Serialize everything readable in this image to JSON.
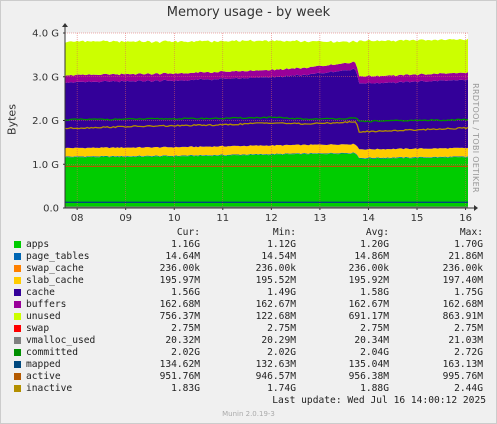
{
  "title": "Memory usage - by week",
  "side_label": "RRDTOOL / TOBI OETIKER",
  "footer": "Munin 2.0.19-3",
  "last_update": "Last update:  Wed Jul 16 14:00:12 2025",
  "legend_headers": [
    "Cur:",
    "Min:",
    "Avg:",
    "Max:"
  ],
  "legend": [
    {
      "name": "apps",
      "color": "#00cc00",
      "cur": "1.16G",
      "min": "1.12G",
      "avg": "1.20G",
      "max": "1.70G"
    },
    {
      "name": "page_tables",
      "color": "#0066b3",
      "cur": "14.64M",
      "min": "14.54M",
      "avg": "14.86M",
      "max": "21.86M"
    },
    {
      "name": "swap_cache",
      "color": "#ff8000",
      "cur": "236.00k",
      "min": "236.00k",
      "avg": "236.00k",
      "max": "236.00k"
    },
    {
      "name": "slab_cache",
      "color": "#ffcc00",
      "cur": "195.97M",
      "min": "195.52M",
      "avg": "195.92M",
      "max": "197.40M"
    },
    {
      "name": "cache",
      "color": "#330099",
      "cur": "1.56G",
      "min": "1.49G",
      "avg": "1.58G",
      "max": "1.75G"
    },
    {
      "name": "buffers",
      "color": "#990099",
      "cur": "162.68M",
      "min": "162.67M",
      "avg": "162.67M",
      "max": "162.68M"
    },
    {
      "name": "unused",
      "color": "#ccff00",
      "cur": "756.37M",
      "min": "122.68M",
      "avg": "691.17M",
      "max": "863.91M"
    },
    {
      "name": "swap",
      "color": "#ff0000",
      "cur": "2.75M",
      "min": "2.75M",
      "avg": "2.75M",
      "max": "2.75M"
    },
    {
      "name": "vmalloc_used",
      "color": "#808080",
      "cur": "20.32M",
      "min": "20.29M",
      "avg": "20.34M",
      "max": "21.03M"
    },
    {
      "name": "committed",
      "color": "#008f00",
      "cur": "2.02G",
      "min": "2.02G",
      "avg": "2.04G",
      "max": "2.72G"
    },
    {
      "name": "mapped",
      "color": "#00487d",
      "cur": "134.62M",
      "min": "132.63M",
      "avg": "135.04M",
      "max": "163.13M"
    },
    {
      "name": "active",
      "color": "#b35a00",
      "cur": "951.76M",
      "min": "946.57M",
      "avg": "956.38M",
      "max": "995.76M"
    },
    {
      "name": "inactive",
      "color": "#b38f00",
      "cur": "1.83G",
      "min": "1.74G",
      "avg": "1.88G",
      "max": "2.44G"
    }
  ],
  "chart_data": {
    "type": "area",
    "title": "Memory usage - by week",
    "ylabel": "Bytes",
    "xlabel": "",
    "x_ticks": [
      "08",
      "09",
      "10",
      "11",
      "12",
      "13",
      "14",
      "15",
      "16"
    ],
    "y_ticks": [
      "0.0",
      "1.0 G",
      "2.0 G",
      "3.0 G",
      "4.0 G"
    ],
    "y_tick_values": [
      0,
      1.0,
      2.0,
      3.0,
      4.0
    ],
    "ylim": [
      0,
      4.0
    ],
    "y_unit": "GB",
    "xlim_days": [
      7.75,
      16.05
    ],
    "grid": true,
    "stacked_series": [
      {
        "name": "apps",
        "color": "#00cc00",
        "x": [
          7.75,
          10.0,
          12.0,
          13.75,
          13.8,
          16.05
        ],
        "y": [
          1.16,
          1.18,
          1.22,
          1.25,
          1.13,
          1.16
        ]
      },
      {
        "name": "page_tables",
        "color": "#0066b3",
        "x": [
          7.75,
          16.05
        ],
        "y": [
          0.015,
          0.015
        ]
      },
      {
        "name": "swap_cache",
        "color": "#ff8000",
        "x": [
          7.75,
          16.05
        ],
        "y": [
          0.0,
          0.0
        ]
      },
      {
        "name": "slab_cache",
        "color": "#ffcc00",
        "x": [
          7.75,
          16.05
        ],
        "y": [
          0.196,
          0.196
        ]
      },
      {
        "name": "cache",
        "color": "#330099",
        "x": [
          7.75,
          10.0,
          12.0,
          12.7,
          13.75,
          13.8,
          16.05
        ],
        "y": [
          1.5,
          1.52,
          1.56,
          1.6,
          1.72,
          1.5,
          1.56
        ]
      },
      {
        "name": "buffers",
        "color": "#990099",
        "x": [
          7.75,
          16.05
        ],
        "y": [
          0.163,
          0.163
        ]
      },
      {
        "name": "unused",
        "color": "#ccff00",
        "x": [
          7.75,
          10.0,
          12.0,
          12.7,
          13.75,
          13.8,
          16.05
        ],
        "y": [
          0.77,
          0.73,
          0.67,
          0.6,
          0.46,
          0.81,
          0.76
        ]
      }
    ],
    "line_series": [
      {
        "name": "committed",
        "color": "#008f00",
        "x": [
          7.75,
          9.0,
          11.0,
          12.0,
          12.7,
          13.75,
          13.8,
          16.05
        ],
        "y": [
          2.02,
          2.03,
          2.05,
          2.07,
          2.03,
          2.05,
          1.98,
          2.02
        ]
      },
      {
        "name": "inactive",
        "color": "#b38f00",
        "x": [
          7.75,
          9.0,
          11.0,
          12.0,
          12.7,
          13.75,
          13.8,
          16.05
        ],
        "y": [
          1.82,
          1.86,
          1.9,
          1.95,
          1.92,
          1.97,
          1.74,
          1.83
        ]
      },
      {
        "name": "active",
        "color": "#b35a00",
        "x": [
          7.75,
          16.05
        ],
        "y": [
          0.95,
          0.95
        ]
      },
      {
        "name": "mapped",
        "color": "#00487d",
        "x": [
          7.75,
          16.05
        ],
        "y": [
          0.13,
          0.13
        ]
      },
      {
        "name": "vmalloc_used",
        "color": "#808080",
        "x": [
          7.75,
          16.05
        ],
        "y": [
          0.02,
          0.02
        ]
      }
    ]
  }
}
